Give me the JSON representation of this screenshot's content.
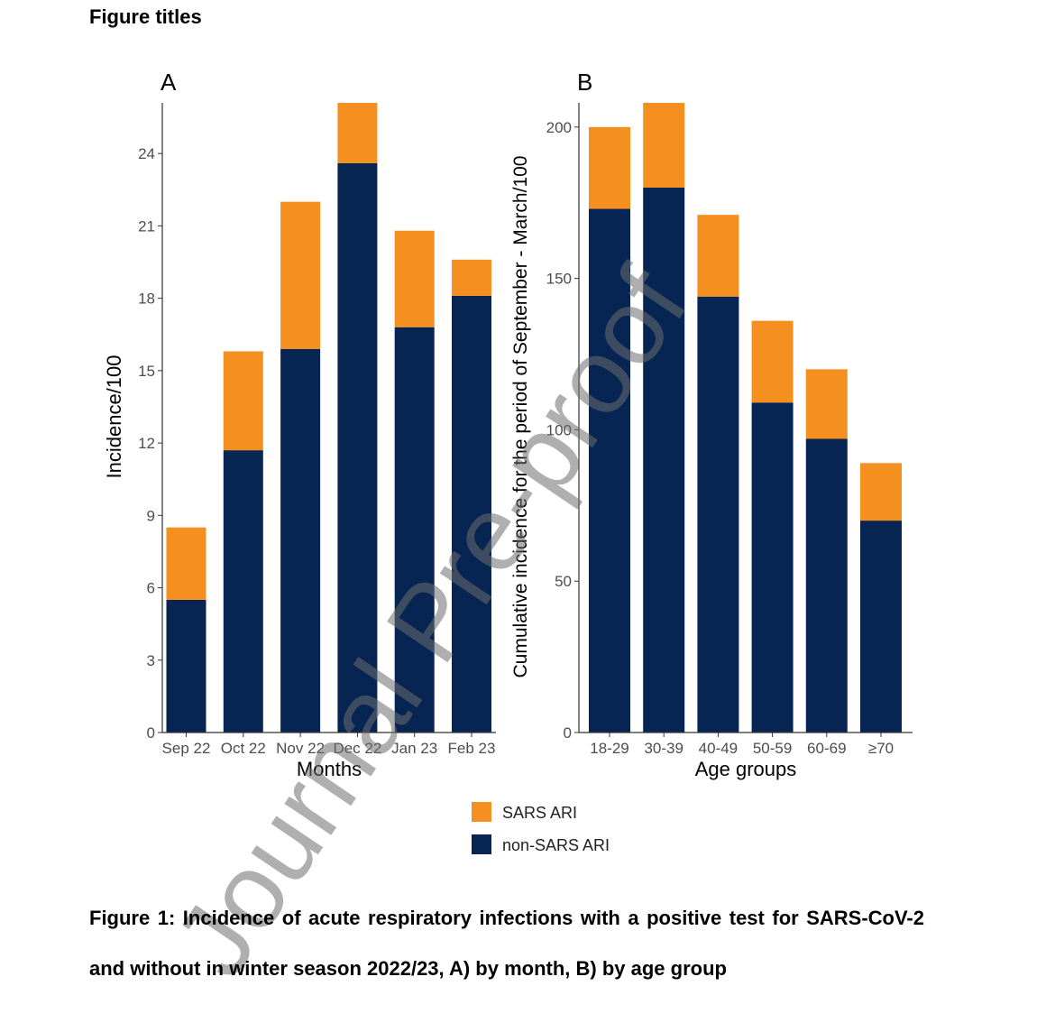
{
  "heading": "Figure titles",
  "caption": "Figure 1: Incidence of acute respiratory infections with a positive test for SARS-CoV-2 and without in winter season 2022/23, A) by month, B) by age group",
  "watermark": "Journal Pre-proof",
  "colors": {
    "sars": "#F58F1F",
    "nonsars": "#062552",
    "axis": "#333333",
    "tick_text": "#4d4d4d"
  },
  "legend": {
    "placement": "bottom-center",
    "items": [
      {
        "label": "SARS ARI",
        "color": "#F58F1F"
      },
      {
        "label": "non-SARS ARI",
        "color": "#062552"
      }
    ]
  },
  "chart_data": [
    {
      "panel_label": "A",
      "type": "bar",
      "stacked": true,
      "categories": [
        "Sep 22",
        "Oct 22",
        "Nov 22",
        "Dec 22",
        "Jan 23",
        "Feb 23"
      ],
      "series": [
        {
          "name": "non-SARS ARI",
          "values": [
            5.5,
            11.7,
            15.9,
            23.6,
            16.8,
            18.1
          ]
        },
        {
          "name": "SARS ARI",
          "values": [
            3.0,
            4.1,
            6.1,
            2.5,
            4.0,
            1.5
          ]
        }
      ],
      "xlabel": "Months",
      "ylabel": "Incidence/100",
      "yticks": [
        0,
        3,
        6,
        9,
        12,
        15,
        18,
        21,
        24
      ],
      "ylim": [
        0,
        26.1
      ],
      "grid": false
    },
    {
      "panel_label": "B",
      "type": "bar",
      "stacked": true,
      "categories": [
        "18-29",
        "30-39",
        "40-49",
        "50-59",
        "60-69",
        "≥70"
      ],
      "series": [
        {
          "name": "non-SARS ARI",
          "values": [
            173,
            180,
            144,
            109,
            97,
            70
          ]
        },
        {
          "name": "SARS ARI",
          "values": [
            27,
            28,
            27,
            27,
            23,
            19
          ]
        }
      ],
      "xlabel": "Age groups",
      "ylabel": "Cumulative incidence for the period of September - March/100",
      "yticks": [
        0,
        50,
        100,
        150,
        200
      ],
      "ylim": [
        0,
        208
      ],
      "grid": false
    }
  ]
}
